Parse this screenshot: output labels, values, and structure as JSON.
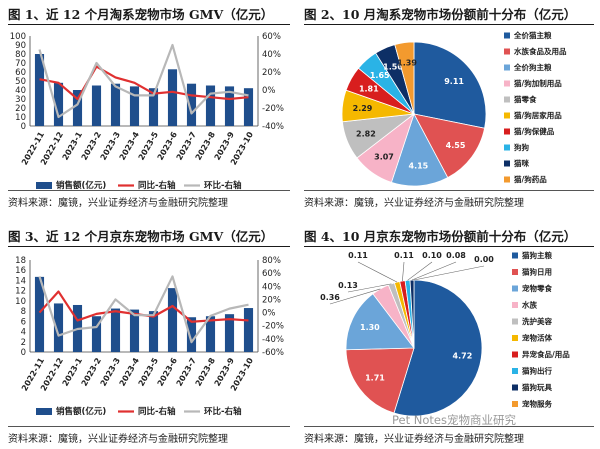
{
  "panels": [
    {
      "id": "p1",
      "title": "图 1、近 12 个月淘系宠物市场 GMV（亿元）",
      "source": "资料来源：魔镜，兴业证券经济与金融研究院整理"
    },
    {
      "id": "p2",
      "title": "图 2、10 月淘系宠物市场份额前十分布（亿元）",
      "source": "资料来源：魔镜，兴业证券经济与金融研究院整理"
    },
    {
      "id": "p3",
      "title": "图 3、近 12 个月京东宠物市场 GMV（亿元）",
      "source": "资料来源：魔镜，兴业证券经济与金融研究院整理"
    },
    {
      "id": "p4",
      "title": "图 4、10 月京东宠物市场份额前十分布（亿元）",
      "source": "资料来源：魔镜，兴业证券经济与金融研究院整理"
    }
  ],
  "watermark": "Pet Notes宠物商业研究",
  "chart_data": [
    {
      "type": "bar",
      "title": "图 1、近 12 个月淘系宠物市场 GMV（亿元）",
      "categories": [
        "2022-11",
        "2022-12",
        "2023-1",
        "2023-2",
        "2023-3",
        "2023-4",
        "2023-5",
        "2023-6",
        "2023-7",
        "2023-8",
        "2023-9",
        "2023-10"
      ],
      "y_left": {
        "ticks": [
          0,
          10,
          20,
          30,
          40,
          50,
          60,
          70,
          80,
          90,
          100
        ],
        "range": [
          0,
          100
        ]
      },
      "y_right": {
        "ticks": [
          "-40%",
          "-20%",
          "0%",
          "20%",
          "40%",
          "60%"
        ],
        "range": [
          -40,
          60
        ]
      },
      "series": [
        {
          "name": "销售额(亿元)",
          "kind": "bar",
          "axis": "left",
          "color": "#1f4e8c",
          "values": [
            80,
            48,
            40,
            45,
            47,
            44,
            42,
            63,
            47,
            45,
            44,
            42
          ]
        },
        {
          "name": "同比-右轴",
          "kind": "line",
          "axis": "right",
          "color": "#e03030",
          "values": [
            12,
            8,
            -10,
            26,
            14,
            8,
            -4,
            -2,
            -6,
            -8,
            -10,
            -8
          ]
        },
        {
          "name": "环比-右轴",
          "kind": "line",
          "axis": "right",
          "color": "#b8b8b8",
          "values": [
            45,
            -30,
            -16,
            30,
            4,
            -6,
            -6,
            50,
            -26,
            -4,
            -2,
            -6
          ]
        }
      ],
      "legend": "bottom"
    },
    {
      "type": "pie",
      "title": "图 2、10 月淘系宠物市场份额前十分布（亿元）",
      "slices": [
        {
          "label": "全价猫主粮",
          "value": 9.11,
          "color": "#1f5a9e"
        },
        {
          "label": "水族食品及用品",
          "value": 4.55,
          "color": "#e05252"
        },
        {
          "label": "全价狗主粮",
          "value": 4.15,
          "color": "#6ba5d9"
        },
        {
          "label": "猫/狗加制用品",
          "value": 3.07,
          "color": "#f7b3c7"
        },
        {
          "label": "猫零食",
          "value": 2.82,
          "color": "#bfbfbf"
        },
        {
          "label": "猫/狗居家用品",
          "value": 2.29,
          "color": "#f5b800"
        },
        {
          "label": "猫/狗保健品",
          "value": 1.81,
          "color": "#d81e1e"
        },
        {
          "label": "狗狗",
          "value": 1.65,
          "color": "#2ab3e6"
        },
        {
          "label": "猫咪",
          "value": 1.5,
          "color": "#0d2f66"
        },
        {
          "label": "猫/狗药品",
          "value": 1.39,
          "color": "#f39a2e"
        }
      ],
      "legend": "right"
    },
    {
      "type": "bar",
      "title": "图 3、近 12 个月京东宠物市场 GMV（亿元）",
      "categories": [
        "2022-11",
        "2022-12",
        "2023-1",
        "2023-2",
        "2023-3",
        "2023-4",
        "2023-5",
        "2023-6",
        "2023-7",
        "2023-8",
        "2023-9",
        "2023-10"
      ],
      "y_left": {
        "ticks": [
          0,
          2,
          4,
          6,
          8,
          10,
          12,
          14,
          16,
          18
        ],
        "range": [
          0,
          18
        ]
      },
      "y_right": {
        "ticks": [
          "-60%",
          "-40%",
          "-20%",
          "0%",
          "20%",
          "40%",
          "60%",
          "80%"
        ],
        "range": [
          -60,
          80
        ]
      },
      "series": [
        {
          "name": "销售额(亿元)",
          "kind": "bar",
          "axis": "left",
          "color": "#1f4e8c",
          "values": [
            14.7,
            9.5,
            9.2,
            7.0,
            8.5,
            8.3,
            8.0,
            12.5,
            6.8,
            7.0,
            7.4,
            8.6
          ]
        },
        {
          "name": "同比-右轴",
          "kind": "line",
          "axis": "right",
          "color": "#e03030",
          "values": [
            0,
            32,
            -12,
            -2,
            2,
            -2,
            -6,
            10,
            -14,
            -12,
            -10,
            -12
          ]
        },
        {
          "name": "环比-右轴",
          "kind": "line",
          "axis": "right",
          "color": "#b8b8b8",
          "values": [
            55,
            -35,
            -25,
            -22,
            20,
            -4,
            -4,
            55,
            -45,
            -5,
            6,
            12
          ]
        }
      ],
      "legend": "bottom"
    },
    {
      "type": "pie",
      "title": "图 4、10 月京东宠物市场份额前十分布（亿元）",
      "slices": [
        {
          "label": "猫狗主粮",
          "value": 4.72,
          "color": "#1f5a9e"
        },
        {
          "label": "猫狗日用",
          "value": 1.71,
          "color": "#e05252"
        },
        {
          "label": "宠物零食",
          "value": 1.3,
          "color": "#6ba5d9"
        },
        {
          "label": "水族",
          "value": 0.36,
          "color": "#f7b3c7"
        },
        {
          "label": "洗护美容",
          "value": 0.13,
          "color": "#bfbfbf"
        },
        {
          "label": "宠物活体",
          "value": 0.11,
          "color": "#f5b800"
        },
        {
          "label": "异宠食品/用品",
          "value": 0.11,
          "color": "#d81e1e"
        },
        {
          "label": "猫狗出行",
          "value": 0.1,
          "color": "#2ab3e6"
        },
        {
          "label": "猫狗玩具",
          "value": 0.08,
          "color": "#0d2f66"
        },
        {
          "label": "宠物服务",
          "value": 0.0,
          "color": "#f39a2e"
        }
      ],
      "legend": "right"
    }
  ]
}
